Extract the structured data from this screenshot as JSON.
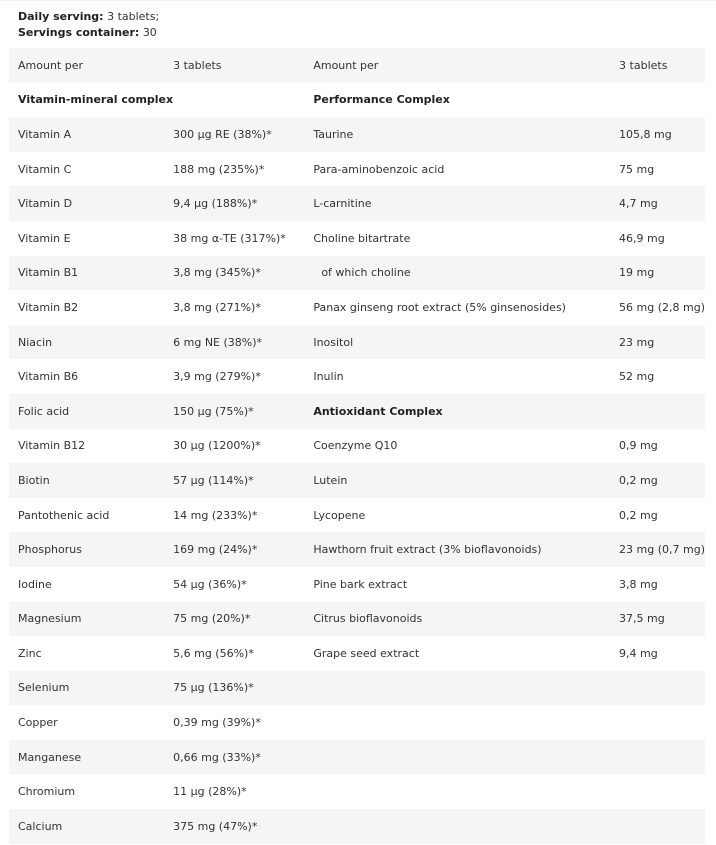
{
  "intro": {
    "daily_label": "Daily serving:",
    "daily_value": "3 tablets;",
    "servings_label": "Servings container:",
    "servings_value": "30"
  },
  "rows": [
    [
      "Amount per",
      "3 tablets",
      "Amount per",
      "3 tablets"
    ],
    [
      "Vitamin-mineral complex",
      "",
      "Performance Complex",
      ""
    ],
    [
      "Vitamin A",
      "300 µg RE (38%)*",
      "Taurine",
      "105,8 mg"
    ],
    [
      "Vitamin C",
      "188 mg (235%)*",
      "Para-aminobenzoic acid",
      "75 mg"
    ],
    [
      "Vitamin D",
      "9,4 µg (188%)*",
      "L-carnitine",
      "4,7 mg"
    ],
    [
      "Vitamin E",
      "38 mg α-TE  (317%)*",
      "Choline bitartrate",
      "46,9 mg"
    ],
    [
      "Vitamin B1",
      "3,8 mg (345%)*",
      "   of which choline",
      "19 mg"
    ],
    [
      "Vitamin B2",
      "3,8 mg (271%)*",
      "Panax ginseng root extract (5% ginsenosides)",
      "56 mg (2,8 mg)"
    ],
    [
      "Niacin",
      "6 mg NE (38%)*",
      "Inositol",
      "23 mg"
    ],
    [
      "Vitamin B6",
      "3,9 mg (279%)*",
      "Inulin",
      "52 mg"
    ],
    [
      "Folic acid",
      "150 µg (75%)*",
      "Antioxidant Complex",
      ""
    ],
    [
      "Vitamin B12",
      "30 µg (1200%)*",
      "Coenzyme Q10",
      "0,9 mg"
    ],
    [
      "Biotin",
      "57 µg (114%)*",
      "Lutein",
      "0,2 mg"
    ],
    [
      "Pantothenic acid",
      "14 mg (233%)*",
      "Lycopene",
      "0,2 mg"
    ],
    [
      "Phosphorus",
      "169 mg (24%)*",
      "Hawthorn fruit extract (3% bioflavonoids)",
      "23 mg (0,7 mg)"
    ],
    [
      "Iodine",
      "54 µg (36%)*",
      "Pine bark extract",
      "3,8 mg"
    ],
    [
      "Magnesium",
      "75 mg (20%)*",
      "Citrus bioflavonoids",
      "37,5 mg"
    ],
    [
      "Zinc",
      "5,6 mg (56%)*",
      "Grape seed extract",
      "9,4 mg"
    ],
    [
      "Selenium",
      "75 µg (136%)*",
      "",
      ""
    ],
    [
      "Copper",
      "0,39 mg (39%)*",
      "",
      ""
    ],
    [
      "Manganese",
      "0,66 mg (33%)*",
      "",
      ""
    ],
    [
      "Chromium",
      "11 µg (28%)*",
      "",
      ""
    ],
    [
      "Calcium",
      "375 mg (47%)*",
      "",
      ""
    ]
  ],
  "bold_rows": [
    1
  ],
  "bold_cells": [
    [
      10,
      2
    ]
  ]
}
